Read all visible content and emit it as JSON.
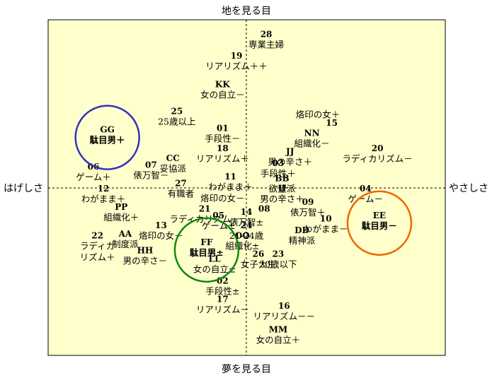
{
  "chart_data": {
    "type": "scatter",
    "axes": {
      "top": "地を見る目",
      "bottom": "夢を見る目",
      "left": "はげしさ",
      "right": "やさしさ"
    },
    "xlim": [
      -10,
      10
    ],
    "ylim": [
      -10,
      10
    ],
    "points": [
      {
        "code": "28",
        "label": "専業主婦",
        "x": 1.0,
        "y": 9.0
      },
      {
        "code": "19",
        "label": "リアリズム＋＋",
        "x": -0.5,
        "y": 7.7
      },
      {
        "code": "KK",
        "label": "女の自立－",
        "x": -1.2,
        "y": 6.0
      },
      {
        "code": "25",
        "label": "25歳以上",
        "x": -3.5,
        "y": 4.4
      },
      {
        "code": "01",
        "label": "手段性－",
        "x": -1.2,
        "y": 3.4
      },
      {
        "code": "18",
        "label": "リアリズム＋",
        "x": -1.2,
        "y": 2.2
      },
      {
        "code": "CC",
        "label": "妥協派",
        "x": -3.7,
        "y": 1.6
      },
      {
        "code": "07",
        "label": "俵万智－",
        "x": -4.8,
        "y": 1.2
      },
      {
        "code": "06",
        "label": "ゲーム＋",
        "x": -7.7,
        "y": 1.1
      },
      {
        "code": "27",
        "label": "有職者",
        "x": -3.3,
        "y": 0.1
      },
      {
        "code": "11",
        "label": "わがまま＋",
        "x": -0.8,
        "y": 0.5
      },
      {
        "code": "12",
        "label": "わがまま＋",
        "x": -7.2,
        "y": -0.2
      },
      {
        "code": "",
        "label": "烙印の女－",
        "x": -1.2,
        "y": -0.8
      },
      {
        "code": "21",
        "label": "ラディカリズム－",
        "x": -2.1,
        "y": -1.4
      },
      {
        "code": "05",
        "label": "ゲーム±",
        "x": -1.4,
        "y": -1.8
      },
      {
        "code": "13",
        "label": "烙印の女－",
        "x": -4.3,
        "y": -2.4
      },
      {
        "code": "PP",
        "label": "組織化＋",
        "x": -6.3,
        "y": -1.3
      },
      {
        "code": "22",
        "label": "ラディカ\nリズム＋",
        "x": -7.5,
        "y": -3.0
      },
      {
        "code": "AA",
        "label": "制度派",
        "x": -6.1,
        "y": -2.9
      },
      {
        "code": "HH",
        "label": "男の辛さ－",
        "x": -5.1,
        "y": -3.9
      },
      {
        "code": "LL",
        "label": "女の自立±",
        "x": -1.6,
        "y": -4.4
      },
      {
        "code": "02",
        "label": "手段性±",
        "x": -1.2,
        "y": -5.7
      },
      {
        "code": "17",
        "label": "リアリズム－",
        "x": -1.2,
        "y": -6.8
      },
      {
        "code": "16",
        "label": "リアリズム－－",
        "x": 1.9,
        "y": -7.2
      },
      {
        "code": "MM",
        "label": "女の自立＋",
        "x": 1.6,
        "y": -8.6
      },
      {
        "code": "14",
        "label": "俵万智±",
        "x": 0.0,
        "y": -1.6
      },
      {
        "code": "24",
        "label": "21-24歳",
        "x": 0.0,
        "y": -2.4
      },
      {
        "code": "OO",
        "label": "組織化±",
        "x": -0.2,
        "y": -3.0
      },
      {
        "code": "26",
        "label": "女子大生",
        "x": 0.6,
        "y": -4.1
      },
      {
        "code": "23",
        "label": "20歳以下",
        "x": 1.6,
        "y": -4.1
      },
      {
        "code": "08",
        "label": "",
        "x": 0.9,
        "y": -1.4
      },
      {
        "code": "DD",
        "label": "精神派",
        "x": 2.8,
        "y": -2.7
      },
      {
        "code": "09",
        "label": "俵万智＋",
        "x": 3.1,
        "y": -1.0
      },
      {
        "code": "10",
        "label": "わがまま－",
        "x": 4.0,
        "y": -2.0
      },
      {
        "code": "II",
        "label": "男の辛さ＋",
        "x": 1.8,
        "y": -0.2
      },
      {
        "code": "BB",
        "label": "欲望派",
        "x": 1.8,
        "y": 0.4
      },
      {
        "code": "03",
        "label": "手段性＋",
        "x": 1.6,
        "y": 1.3
      },
      {
        "code": "JJ",
        "label": "男の辛さ＋",
        "x": 2.2,
        "y": 2.0
      },
      {
        "code": "NN",
        "label": "組織化－",
        "x": 3.3,
        "y": 3.1
      },
      {
        "code": "15",
        "label": "",
        "x": 4.3,
        "y": 3.7
      },
      {
        "code": "",
        "label": "烙印の女＋",
        "x": 3.6,
        "y": 4.2
      },
      {
        "code": "20",
        "label": "ラディカリズム－",
        "x": 6.6,
        "y": 2.2
      },
      {
        "code": "04",
        "label": "ゲーム－",
        "x": 6.0,
        "y": -0.2
      },
      {
        "code": "GG",
        "label": "駄目男＋",
        "x": -7.0,
        "y": 3.3,
        "color": "#3333bb",
        "circle": 1.0
      },
      {
        "code": "FF",
        "label": "駄目男±",
        "x": -2.0,
        "y": -3.4,
        "color": "#118811",
        "circle": 1.0
      },
      {
        "code": "EE",
        "label": "駄目男－",
        "x": 6.7,
        "y": -1.8,
        "color": "#ee6600",
        "circle": 1.0
      }
    ]
  }
}
